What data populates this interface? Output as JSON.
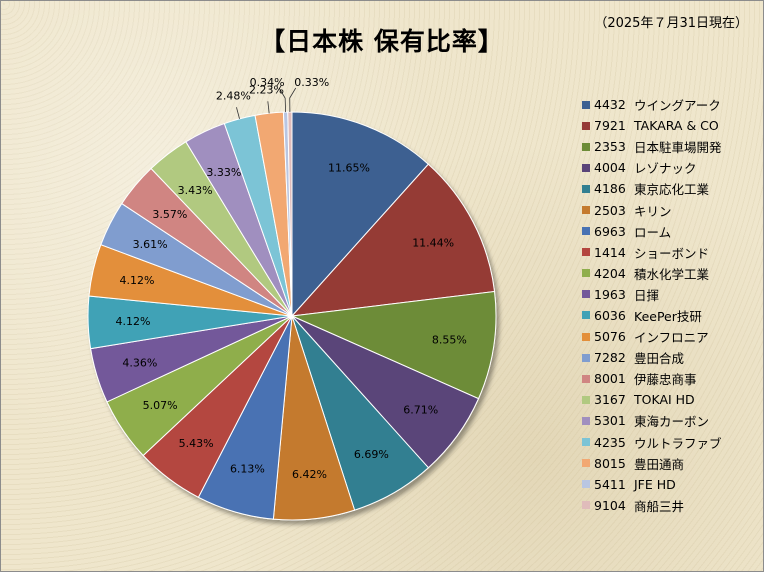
{
  "title": "【日本株 保有比率】",
  "as_of": "（2025年７月31日現在）",
  "chart_data": {
    "type": "pie",
    "start_angle_deg": 0,
    "direction": "clockwise",
    "slices": [
      {
        "code": "4432",
        "name": "ウイングアーク",
        "value": 11.65,
        "label": "11.65%",
        "color": "#3d6191"
      },
      {
        "code": "7921",
        "name": "TAKARA & CO",
        "value": 11.44,
        "label": "11.44%",
        "color": "#953a36"
      },
      {
        "code": "2353",
        "name": "日本駐車場開発",
        "value": 8.55,
        "label": "8.55%",
        "color": "#6d8c37"
      },
      {
        "code": "4004",
        "name": "レゾナック",
        "value": 6.71,
        "label": "6.71%",
        "color": "#5a4479"
      },
      {
        "code": "4186",
        "name": "東京応化工業",
        "value": 6.69,
        "label": "6.69%",
        "color": "#327f91"
      },
      {
        "code": "2503",
        "name": "キリン",
        "value": 6.42,
        "label": "6.42%",
        "color": "#c47a2e"
      },
      {
        "code": "6963",
        "name": "ローム",
        "value": 6.13,
        "label": "6.13%",
        "color": "#4872b3"
      },
      {
        "code": "1414",
        "name": "ショーボンド",
        "value": 5.43,
        "label": "5.43%",
        "color": "#b4463f"
      },
      {
        "code": "4204",
        "name": "積水化学工業",
        "value": 5.07,
        "label": "5.07%",
        "color": "#8fae4c"
      },
      {
        "code": "1963",
        "name": "日揮",
        "value": 4.36,
        "label": "4.36%",
        "color": "#73589a"
      },
      {
        "code": "6036",
        "name": "KeePer技研",
        "value": 4.12,
        "label": "4.12%",
        "color": "#41a2b6"
      },
      {
        "code": "5076",
        "name": "インフロニア",
        "value": 4.12,
        "label": "4.12%",
        "color": "#e38f3a"
      },
      {
        "code": "7282",
        "name": "豊田合成",
        "value": 3.61,
        "label": "3.61%",
        "color": "#809dcf"
      },
      {
        "code": "8001",
        "name": "伊藤忠商事",
        "value": 3.57,
        "label": "3.57%",
        "color": "#d08582"
      },
      {
        "code": "3167",
        "name": "TOKAI HD",
        "value": 3.43,
        "label": "3.43%",
        "color": "#b1c980"
      },
      {
        "code": "5301",
        "name": "東海カーボン",
        "value": 3.33,
        "label": "3.33%",
        "color": "#a08fbf"
      },
      {
        "code": "4235",
        "name": "ウルトラファブ",
        "value": 2.48,
        "label": "2.48%",
        "color": "#7cc4d6"
      },
      {
        "code": "8015",
        "name": "豊田通商",
        "value": 2.23,
        "label": "2.23%",
        "color": "#f2a872"
      },
      {
        "code": "5411",
        "name": "JFE HD",
        "value": 0.34,
        "label": "0.34%",
        "color": "#b9c6e2"
      },
      {
        "code": "9104",
        "name": "商船三井",
        "value": 0.33,
        "label": "0.33%",
        "color": "#e0bcbb"
      }
    ]
  }
}
